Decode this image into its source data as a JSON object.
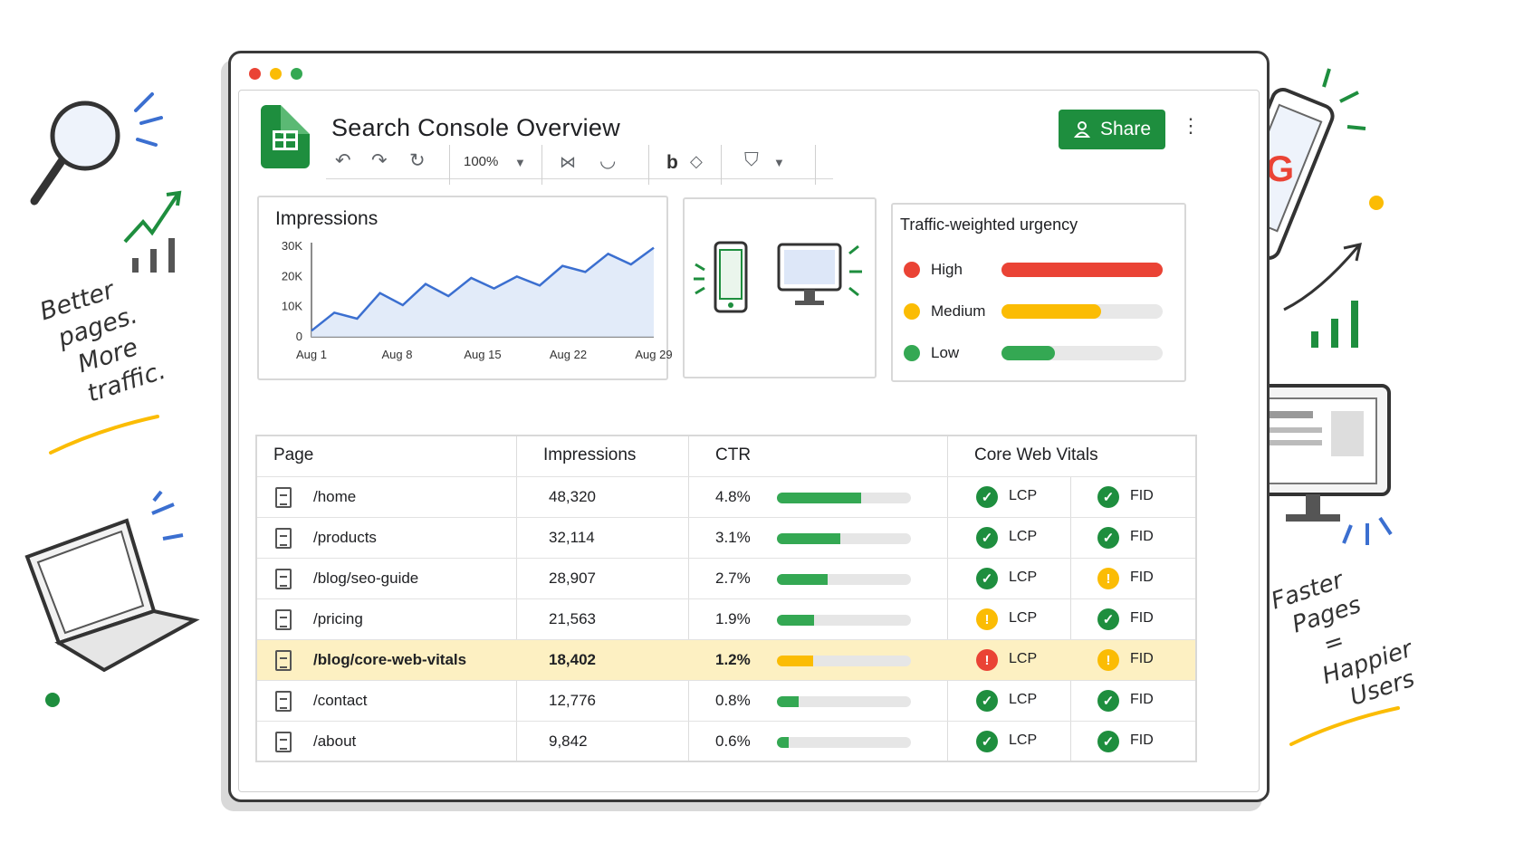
{
  "app": {
    "title": "Search Console Overview",
    "share_label": "Share",
    "zoom": "100%",
    "bold_label": "b"
  },
  "taglines": {
    "left": [
      "Better",
      "pages.",
      "More",
      "traffic."
    ],
    "right": [
      "Faster",
      "Pages",
      "=",
      "Happier",
      "Users"
    ]
  },
  "colors": {
    "green": "#1e8e3e",
    "light_green": "#34a853",
    "yellow": "#fbbc04",
    "red": "#ea4335",
    "blue": "#4a7fd4",
    "highlight": "#fdf0c2"
  },
  "impressions_card": {
    "title": "Impressions",
    "chart_data": {
      "type": "area",
      "x": [
        "Aug 1",
        "Aug 3",
        "Aug 5",
        "Aug 7",
        "Aug 9",
        "Aug 11",
        "Aug 13",
        "Aug 15",
        "Aug 17",
        "Aug 19",
        "Aug 21",
        "Aug 23",
        "Aug 25",
        "Aug 27",
        "Aug 29",
        "Aug 30"
      ],
      "values": [
        2000,
        8000,
        6000,
        14500,
        10500,
        17500,
        13500,
        19500,
        16000,
        20000,
        17000,
        23500,
        21500,
        27500,
        24000,
        29500
      ],
      "xticks": [
        "Aug 1",
        "Aug 8",
        "Aug 15",
        "Aug 22",
        "Aug 29"
      ],
      "yticks": [
        "0",
        "10K",
        "20K",
        "30K"
      ],
      "ylim": [
        0,
        30000
      ],
      "color": "#3b6fd0",
      "grid": false
    }
  },
  "device_card": {
    "icons": [
      "mobile-phone-icon",
      "desktop-monitor-icon"
    ]
  },
  "urgency_card": {
    "title": "Traffic-weighted urgency",
    "rows": [
      {
        "label": "High",
        "color": "#ea4335",
        "fraction": 1.0
      },
      {
        "label": "Medium",
        "color": "#fbbc04",
        "fraction": 0.62
      },
      {
        "label": "Low",
        "color": "#34a853",
        "fraction": 0.33
      }
    ]
  },
  "table": {
    "headers": {
      "page": "Page",
      "impressions": "Impressions",
      "ctr": "CTR",
      "cwv": "Core Web Vitals"
    },
    "rows": [
      {
        "page": "/home",
        "impressions": "48,320",
        "ctr": "4.8%",
        "ctr_fraction": 0.63,
        "lcp": "good",
        "fid": "good",
        "lcp_label": "LCP",
        "fid_label": "FID",
        "highlight": false
      },
      {
        "page": "/products",
        "impressions": "32,114",
        "ctr": "3.1%",
        "ctr_fraction": 0.47,
        "lcp": "good",
        "fid": "good",
        "lcp_label": "LCP",
        "fid_label": "FID",
        "highlight": false
      },
      {
        "page": "/blog/seo-guide",
        "impressions": "28,907",
        "ctr": "2.7%",
        "ctr_fraction": 0.38,
        "lcp": "good",
        "fid": "warn",
        "lcp_label": "LCP",
        "fid_label": "FID",
        "highlight": false
      },
      {
        "page": "/pricing",
        "impressions": "21,563",
        "ctr": "1.9%",
        "ctr_fraction": 0.28,
        "lcp": "warn",
        "fid": "good",
        "lcp_label": "LCP",
        "fid_label": "FID",
        "highlight": false
      },
      {
        "page": "/blog/core-web-vitals",
        "impressions": "18,402",
        "ctr": "1.2%",
        "ctr_fraction": 0.27,
        "lcp": "bad",
        "fid": "warn",
        "lcp_label": "LCP",
        "fid_label": "FID",
        "highlight": true
      },
      {
        "page": "/contact",
        "impressions": "12,776",
        "ctr": "0.8%",
        "ctr_fraction": 0.16,
        "lcp": "good",
        "fid": "good",
        "lcp_label": "LCP",
        "fid_label": "FID",
        "highlight": false
      },
      {
        "page": "/about",
        "impressions": "9,842",
        "ctr": "0.6%",
        "ctr_fraction": 0.09,
        "lcp": "good",
        "fid": "good",
        "lcp_label": "LCP",
        "fid_label": "FID",
        "highlight": false
      }
    ]
  }
}
